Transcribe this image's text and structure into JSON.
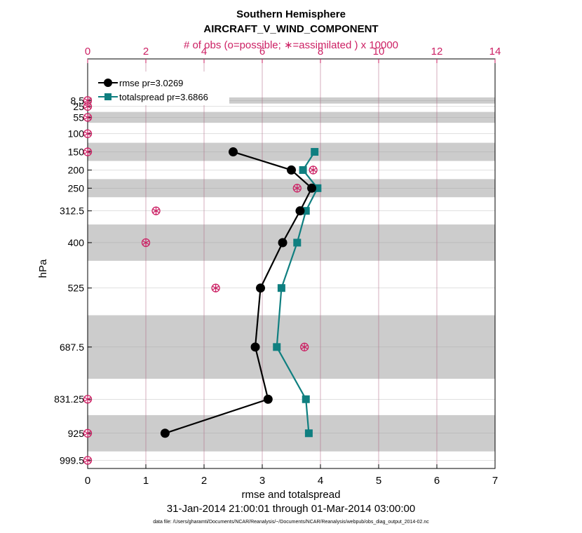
{
  "colors": {
    "rmse": "#000000",
    "spread": "#0f7f80",
    "obs": "#cc1f63",
    "band": "#cccccc",
    "axis": "#000000"
  },
  "chart_data": {
    "type": "line",
    "title": "Southern Hemisphere",
    "subtitle": "AIRCRAFT_V_WIND_COMPONENT",
    "top_axis_label": "# of obs (o=possible; ∗=assimilated ) x 10000",
    "xlabel": "rmse and totalspread",
    "ylabel": "hPa",
    "date_range": "31-Jan-2014 21:00:01 through 01-Mar-2014 03:00:00",
    "footnote": "data file: /Users/gharamti/Documents/NCAR/Reanalysis/~/Documents/NCAR/Reanalysis/webpub/obs_diag_output_2014-02.nc",
    "xlim": [
      0,
      7
    ],
    "x_ticks": [
      "0",
      "1",
      "2",
      "3",
      "4",
      "5",
      "6",
      "7"
    ],
    "top_xlim": [
      0,
      14
    ],
    "top_ticks": [
      "0",
      "2",
      "4",
      "6",
      "8",
      "10",
      "12",
      "14"
    ],
    "levels": [
      8.5,
      25,
      55,
      100,
      150,
      200,
      250,
      312.5,
      400,
      525,
      687.5,
      831.25,
      925,
      999.5
    ],
    "level_labels": [
      "8.5",
      "25",
      "55",
      "100",
      "150",
      "200",
      "250",
      "312.5",
      "400",
      "525",
      "687.5",
      "831.25",
      "925",
      "999.5"
    ],
    "bands_hpa": [
      [
        0,
        17
      ],
      [
        40,
        70
      ],
      [
        125,
        175
      ],
      [
        225,
        275
      ],
      [
        350,
        450
      ],
      [
        600,
        775
      ],
      [
        875,
        975
      ]
    ],
    "legend": [
      {
        "label": "rmse pr=3.0269"
      },
      {
        "label": "totalspread pr=3.6866"
      }
    ],
    "series": [
      {
        "name": "rmse",
        "levels": [
          150,
          200,
          250,
          312.5,
          400,
          525,
          687.5,
          831.25,
          925
        ],
        "values": [
          2.5,
          3.5,
          3.85,
          3.65,
          3.35,
          2.97,
          2.88,
          3.1,
          1.33
        ]
      },
      {
        "name": "totalspread",
        "levels": [
          150,
          200,
          250,
          312.5,
          400,
          525,
          687.5,
          831.25,
          925
        ],
        "values": [
          3.9,
          3.7,
          3.95,
          3.75,
          3.6,
          3.33,
          3.25,
          3.75,
          3.8
        ]
      }
    ],
    "obs_counts": {
      "levels": [
        8.5,
        25,
        55,
        100,
        150,
        200,
        250,
        312.5,
        400,
        525,
        687.5,
        831.25,
        925,
        999.5
      ],
      "possible": [
        0,
        0,
        0,
        0,
        0,
        7.75,
        7.2,
        2.35,
        2.0,
        4.4,
        7.45,
        0,
        0,
        0
      ],
      "assimilated": [
        0,
        0,
        0,
        0,
        0,
        7.75,
        7.2,
        2.35,
        2.0,
        4.4,
        7.45,
        0,
        0,
        0
      ]
    }
  }
}
